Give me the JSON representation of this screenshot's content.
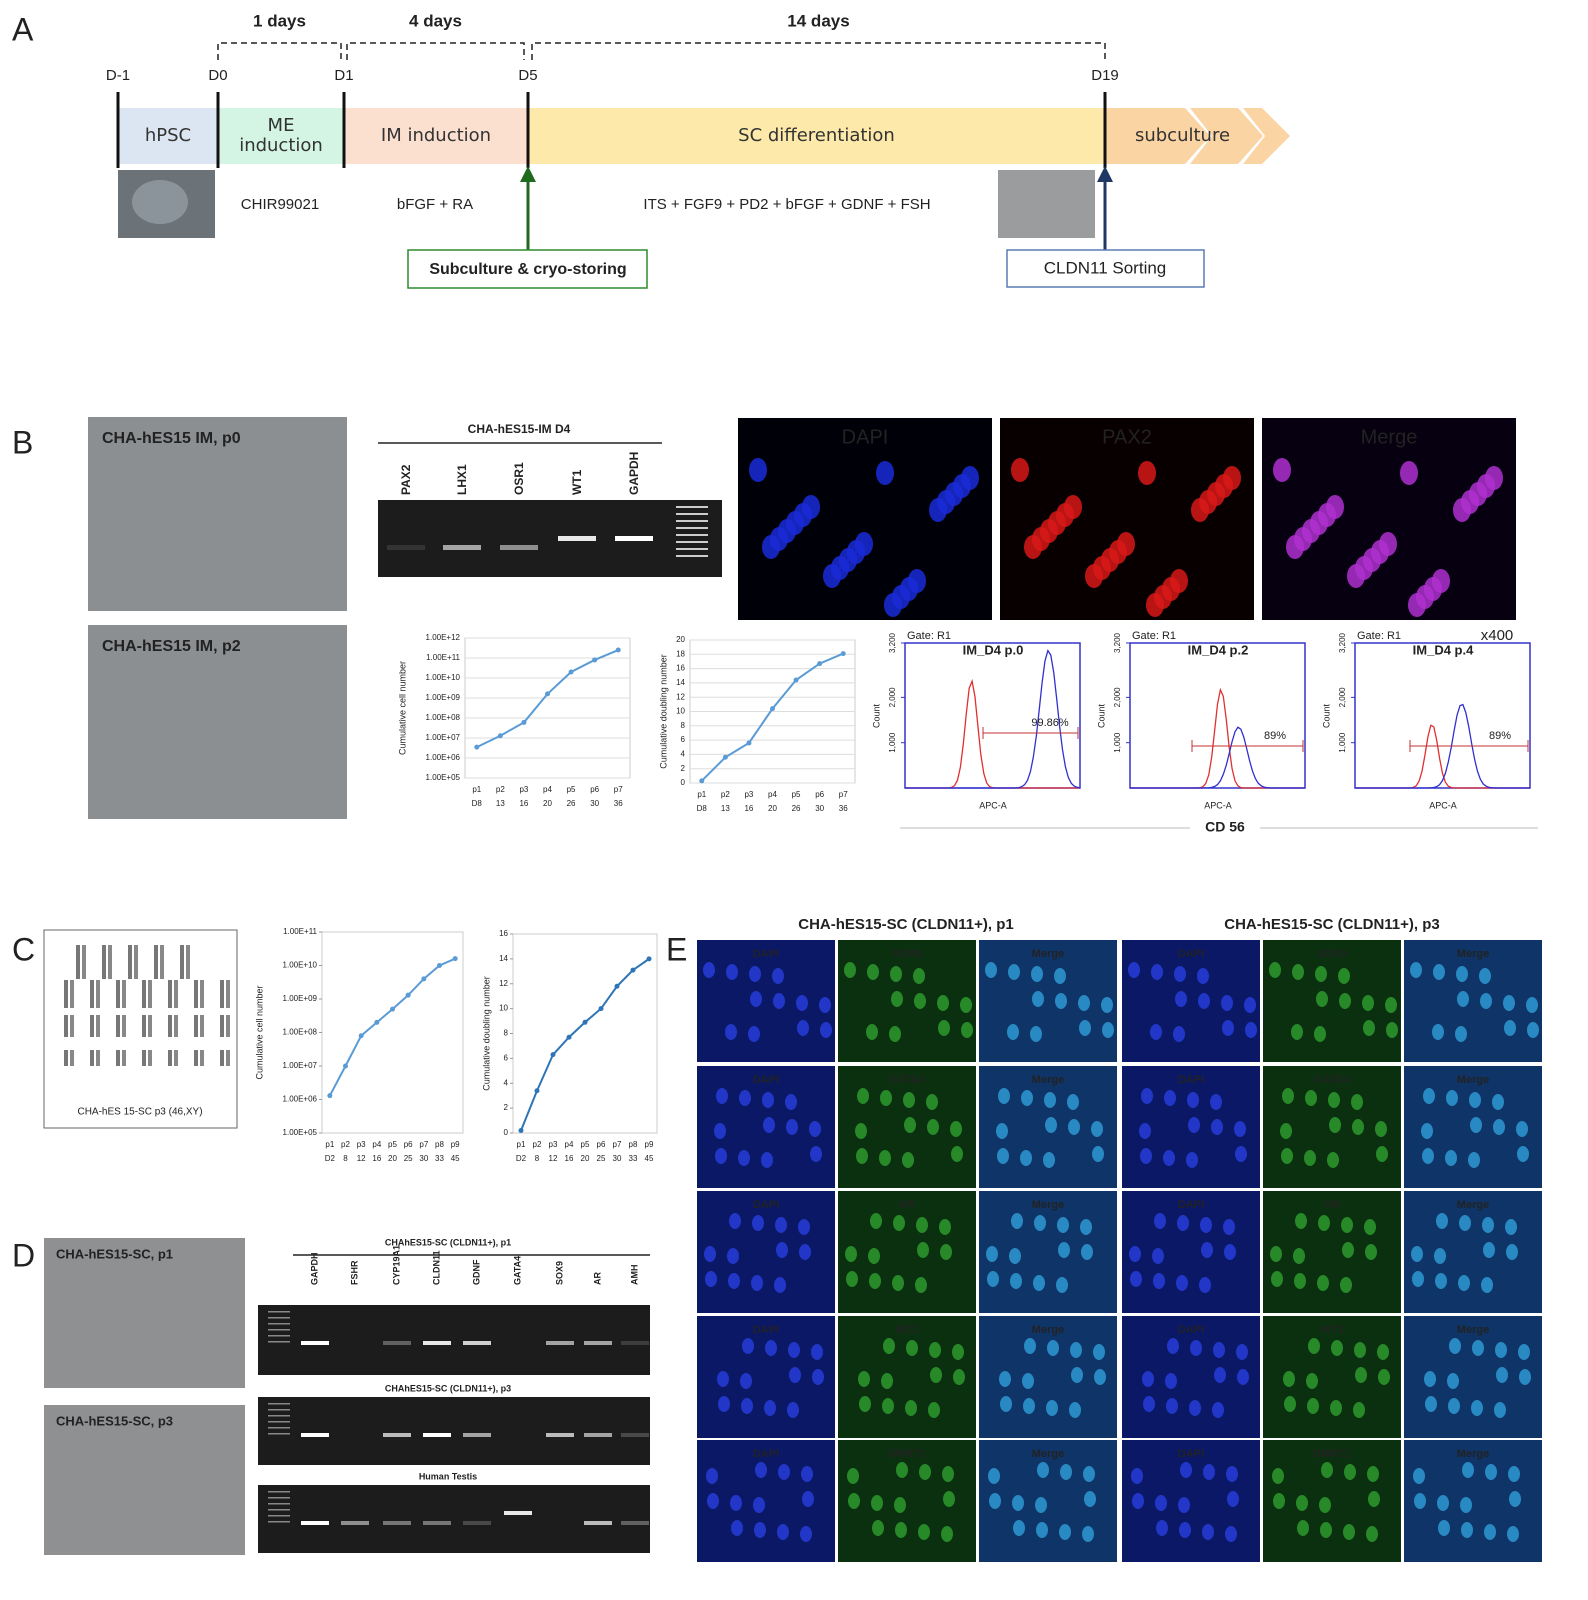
{
  "panel_labels": [
    "A",
    "B",
    "C",
    "D",
    "E"
  ],
  "timeline": {
    "durations": [
      "1 days",
      "4 days",
      "14 days"
    ],
    "days": [
      "D-1",
      "D0",
      "D1",
      "D5",
      "D19"
    ],
    "stages": [
      "hPSC",
      "ME induction",
      "IM induction",
      "SC differentiation",
      "subculture"
    ],
    "factors": [
      "CHIR99021",
      "bFGF  +  RA",
      "ITS + FGF9 + PD2 + bFGF + GDNF + FSH"
    ],
    "events": [
      "Subculture & cryo-storing",
      "CLDN11 Sorting"
    ]
  },
  "im_images": [
    "CHA-hES15 IM, p0",
    "CHA-hES15 IM, p2"
  ],
  "im_gel": {
    "title": "CHA-hES15-IM D4",
    "lanes": [
      "PAX2",
      "LHX1",
      "OSR1",
      "WT1",
      "GAPDH"
    ]
  },
  "pax2_stain": [
    "DAPI",
    "PAX2",
    "Merge"
  ],
  "im_growth": [
    {
      "type": "line",
      "log": true,
      "grid": true,
      "color": "#5b9bd5",
      "y_label": "Cumulative cell number",
      "categories": [
        "p1",
        "p2",
        "p3",
        "p4",
        "p5",
        "p6",
        "p7"
      ],
      "days": [
        "D8",
        "13",
        "16",
        "20",
        "26",
        "30",
        "36"
      ],
      "values": [
        3500000,
        13000000,
        60000000,
        1600000000,
        20000000000,
        80000000000,
        250000000000
      ],
      "ylim": [
        100000,
        1000000000000
      ],
      "yticks": [
        {
          "value": 100000,
          "label": "1.00E+05"
        },
        {
          "value": 1000000,
          "label": "1.00E+06"
        },
        {
          "value": 10000000,
          "label": "1.00E+07"
        },
        {
          "value": 100000000,
          "label": "1.00E+08"
        },
        {
          "value": 1000000000,
          "label": "1.00E+09"
        },
        {
          "value": 10000000000,
          "label": "1.00E+10"
        },
        {
          "value": 100000000000,
          "label": "1.00E+11"
        },
        {
          "value": 1000000000000,
          "label": "1.00E+12"
        }
      ]
    },
    {
      "type": "line",
      "log": false,
      "grid": true,
      "color": "#5b9bd5",
      "y_label": "Cumulative doubling number",
      "categories": [
        "p1",
        "p2",
        "p3",
        "p4",
        "p5",
        "p6",
        "p7"
      ],
      "days": [
        "D8",
        "13",
        "16",
        "20",
        "26",
        "30",
        "36"
      ],
      "values": [
        0.3,
        3.6,
        5.6,
        10.4,
        14.4,
        16.7,
        18.1
      ],
      "ylim": [
        0,
        20
      ],
      "yticks": [
        0,
        2,
        4,
        6,
        8,
        10,
        12,
        14,
        16,
        18,
        20
      ]
    }
  ],
  "flow": {
    "gate": "Gate: R1",
    "magnification": "x400",
    "x_label": "APC-A",
    "y_label": "Count",
    "marker": "CD 56",
    "ylim": [
      0,
      3200
    ],
    "yticks": [
      {
        "value": 1000,
        "label": "1,000"
      },
      {
        "value": 2000,
        "label": "2,000"
      },
      {
        "value": 3200,
        "label": "3,200"
      }
    ],
    "plots": [
      {
        "title": "IM_D4 p.0",
        "percent": "99.86%"
      },
      {
        "title": "IM_D4 p.2",
        "percent": "89%"
      },
      {
        "title": "IM_D4 p.4",
        "percent": "89%"
      }
    ]
  },
  "karyotype": "CHA-hES 15-SC p3 (46,XY)",
  "sc_growth": [
    {
      "type": "line",
      "log": true,
      "grid": false,
      "color": "#5b9bd5",
      "y_label": "Cumulative cell number",
      "categories": [
        "p1",
        "p2",
        "p3",
        "p4",
        "p5",
        "p6",
        "p7",
        "p8",
        "p9"
      ],
      "days": [
        "D2",
        "8",
        "12",
        "16",
        "20",
        "25",
        "30",
        "33",
        "45"
      ],
      "values": [
        1300000,
        10000000,
        80000000,
        200000000,
        500000000,
        1300000000,
        4000000000,
        10000000000,
        16000000000
      ],
      "ylim": [
        100000,
        100000000000
      ],
      "yticks": [
        {
          "value": 100000,
          "label": "1.00E+05"
        },
        {
          "value": 1000000,
          "label": "1.00E+06"
        },
        {
          "value": 10000000,
          "label": "1.00E+07"
        },
        {
          "value": 100000000,
          "label": "1.00E+08"
        },
        {
          "value": 1000000000,
          "label": "1.00E+09"
        },
        {
          "value": 10000000000,
          "label": "1.00E+10"
        },
        {
          "value": 100000000000,
          "label": "1.00E+11"
        }
      ]
    },
    {
      "type": "line",
      "log": false,
      "grid": false,
      "color": "#2e75b6",
      "y_label": "Cumulative doubling number",
      "categories": [
        "p1",
        "p2",
        "p3",
        "p4",
        "p5",
        "p6",
        "p7",
        "p8",
        "p9"
      ],
      "days": [
        "D2",
        "8",
        "12",
        "16",
        "20",
        "25",
        "30",
        "33",
        "45"
      ],
      "values": [
        0.2,
        3.4,
        6.3,
        7.7,
        8.9,
        10.0,
        11.8,
        13.1,
        14.0
      ],
      "ylim": [
        0,
        16
      ],
      "yticks": [
        0,
        2,
        4,
        6,
        8,
        10,
        12,
        14,
        16
      ]
    }
  ],
  "sc_images": [
    "CHA-hES15-SC, p1",
    "CHA-hES15-SC, p3"
  ],
  "sc_gels": {
    "titles": [
      "CHAhES15-SC (CLDN11+), p1",
      "CHAhES15-SC (CLDN11+), p3",
      "Human Testis"
    ],
    "lanes": [
      "GAPDH",
      "FSHR",
      "CYP19A1",
      "CLDN11",
      "GDNF",
      "GATA4",
      "SOX9",
      "AR",
      "AMH"
    ]
  },
  "sc_stain": {
    "columns": [
      "CHA-hES15-SC (CLDN11+), p1",
      "CHA-hES15-SC (CLDN11+), p3"
    ],
    "dapi": "DAPI",
    "merge": "Merge",
    "markers": [
      "SOX9",
      "GATA4",
      "AR",
      "WT1",
      "DMRT1"
    ]
  }
}
